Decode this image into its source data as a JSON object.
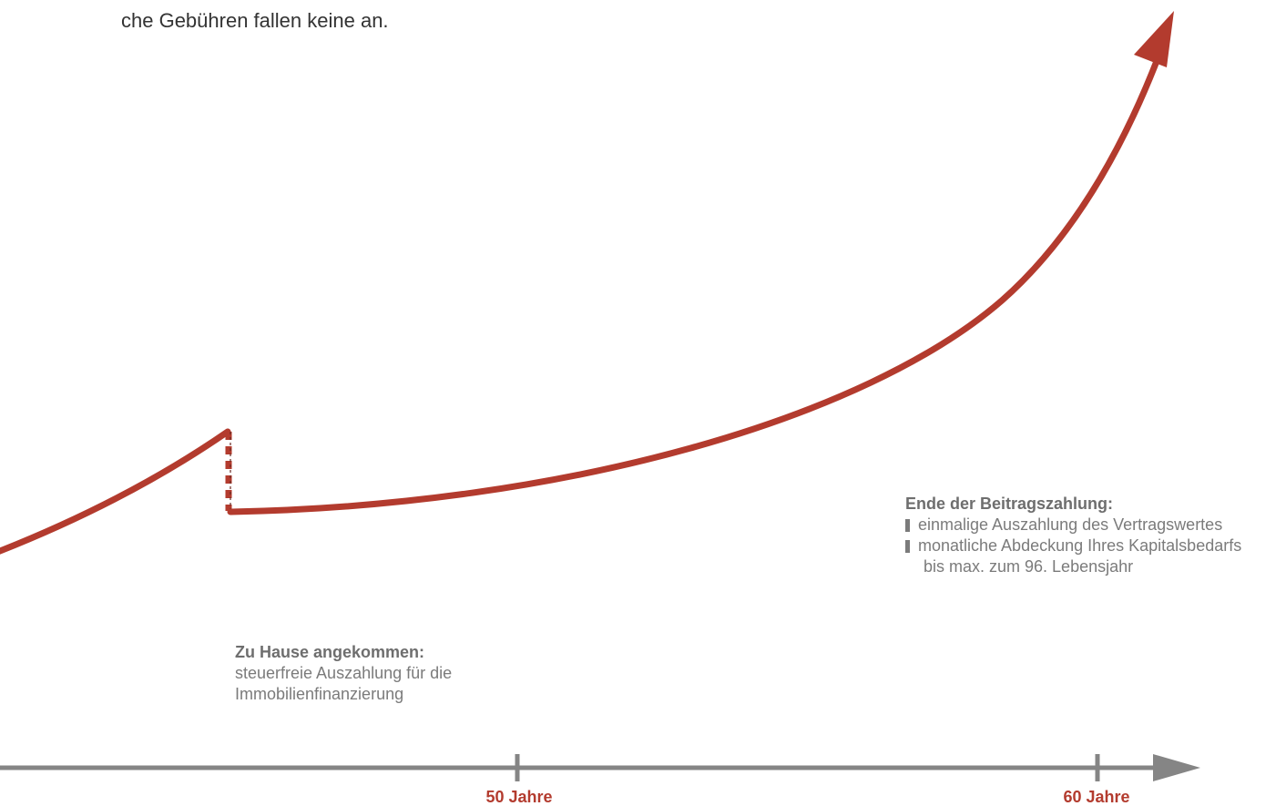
{
  "intro": {
    "text": "che Gebühren fallen keine an."
  },
  "callouts": {
    "end_of_payment": {
      "heading": "Ende der Beitragszahlung:",
      "items": [
        "einmalige Auszahlung des Vertragswertes",
        "monatliche Abdeckung Ihres Kapitalsbedarfs"
      ],
      "continuation": "bis max. zum 96. Lebensjahr"
    },
    "home": {
      "heading": "Zu Hause angekommen:",
      "line1": "steuerfreie Auszahlung für die",
      "line2": "Immobilienfinanzierung"
    }
  },
  "timeline": {
    "ticks": [
      {
        "label": "50 Jahre"
      },
      {
        "label": "60 Jahre"
      }
    ]
  },
  "colors": {
    "curve": "#b33b2e",
    "axis": "#858585",
    "text_gray": "#7b7b7b"
  }
}
